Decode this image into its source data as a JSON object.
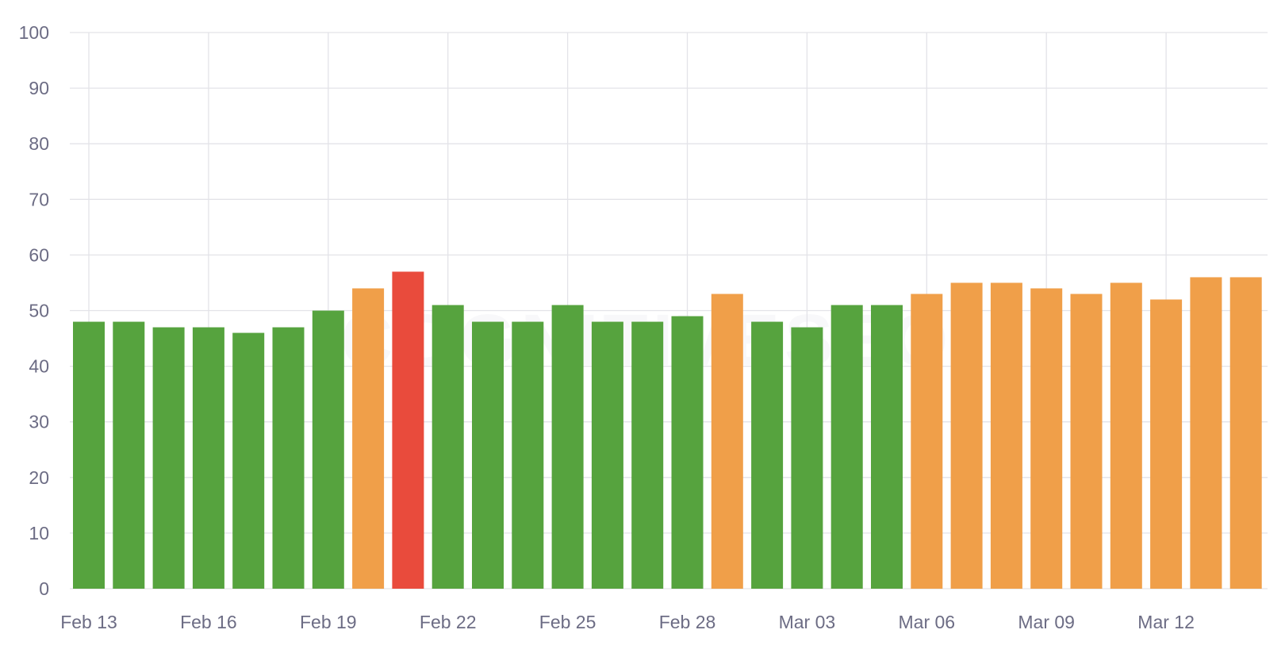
{
  "watermark": "COGNITIVESEO",
  "colors": {
    "good": "#56a33e",
    "warn": "#f09f49",
    "bad": "#e94b3c",
    "grid": "#e3e3e8",
    "tick_text": "#6c6c84"
  },
  "chart_data": {
    "type": "bar",
    "categories": [
      "Feb 13",
      "Feb 14",
      "Feb 15",
      "Feb 16",
      "Feb 17",
      "Feb 18",
      "Feb 19",
      "Feb 20",
      "Feb 21",
      "Feb 22",
      "Feb 23",
      "Feb 24",
      "Feb 25",
      "Feb 26",
      "Feb 27",
      "Feb 28",
      "Mar 01",
      "Mar 02",
      "Mar 03",
      "Mar 04",
      "Mar 05",
      "Mar 06",
      "Mar 07",
      "Mar 08",
      "Mar 09",
      "Mar 10",
      "Mar 11",
      "Mar 12",
      "Mar 13",
      "Mar 14"
    ],
    "values": [
      48,
      48,
      47,
      47,
      46,
      47,
      50,
      54,
      57,
      51,
      48,
      48,
      51,
      48,
      48,
      49,
      53,
      48,
      47,
      51,
      51,
      53,
      55,
      55,
      54,
      53,
      55,
      52,
      56,
      56
    ],
    "bar_status": [
      "good",
      "good",
      "good",
      "good",
      "good",
      "good",
      "good",
      "warn",
      "bad",
      "good",
      "good",
      "good",
      "good",
      "good",
      "good",
      "good",
      "warn",
      "good",
      "good",
      "good",
      "good",
      "warn",
      "warn",
      "warn",
      "warn",
      "warn",
      "warn",
      "warn",
      "warn",
      "warn"
    ],
    "x_tick_labels": [
      "Feb 13",
      "Feb 16",
      "Feb 19",
      "Feb 22",
      "Feb 25",
      "Feb 28",
      "Mar 03",
      "Mar 06",
      "Mar 09",
      "Mar 12"
    ],
    "y_ticks": [
      0,
      10,
      20,
      30,
      40,
      50,
      60,
      70,
      80,
      90,
      100
    ],
    "ylim": [
      0,
      100
    ],
    "title": "",
    "xlabel": "",
    "ylabel": "",
    "grid": true,
    "legend": false
  }
}
